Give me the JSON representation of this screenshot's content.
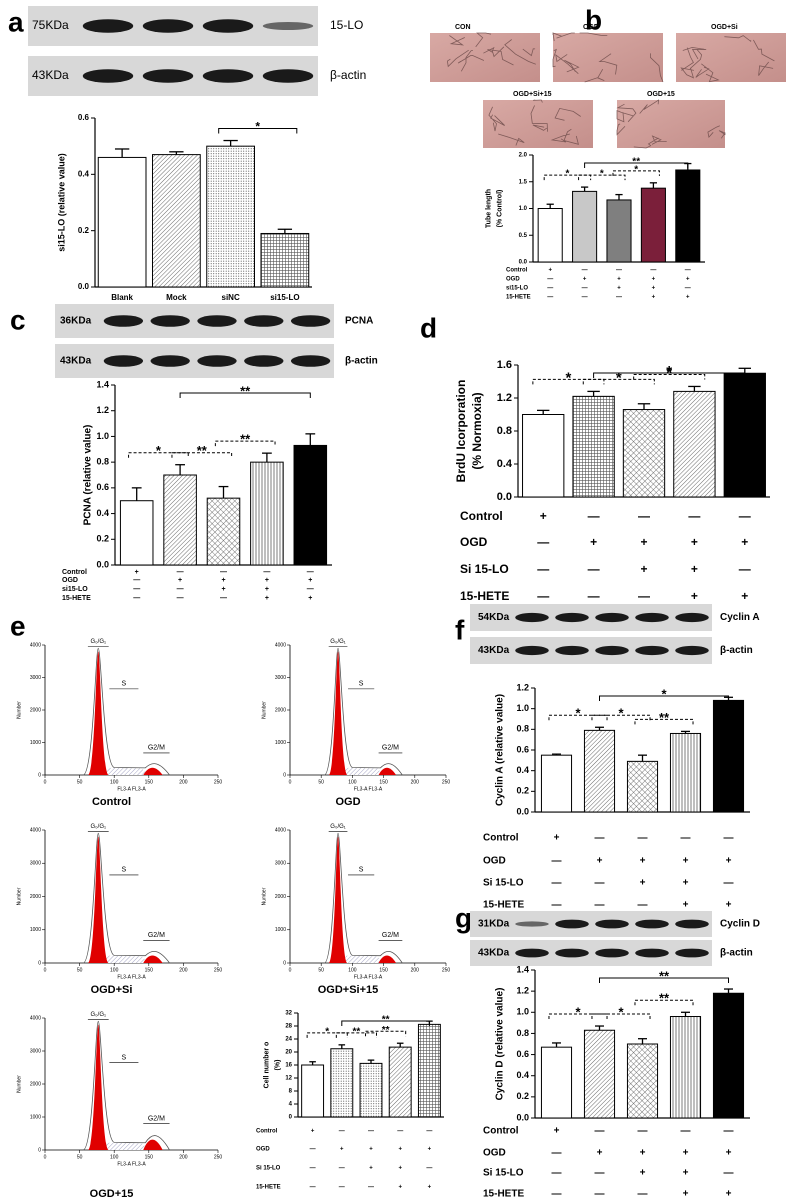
{
  "chart_data": [
    {
      "type": "bar",
      "panel": "a",
      "blots": [
        {
          "size": "75KDa",
          "protein": "15-LO"
        },
        {
          "size": "43KDa",
          "protein": "β-actin"
        }
      ],
      "ylabel": "si15-LO  (relative value)",
      "categories": [
        "Blank",
        "Mock",
        "siNC",
        "si15-LO"
      ],
      "values": [
        0.46,
        0.47,
        0.5,
        0.19
      ],
      "errors": [
        0.03,
        0.01,
        0.02,
        0.015
      ],
      "patterns": [
        "white",
        "hatch",
        "dots",
        "grid"
      ],
      "ylim": [
        0,
        0.6
      ],
      "yticks": [
        {
          "value": 0,
          "label": "0.0"
        },
        0.2,
        0.4,
        0.6
      ],
      "significance": [
        {
          "between": [
            2,
            3
          ],
          "label": "*"
        }
      ]
    },
    {
      "type": "bar",
      "panel": "b",
      "ylabel": [
        "Tube length",
        "(% Control)"
      ],
      "values": [
        1.0,
        1.32,
        1.16,
        1.38,
        1.72
      ],
      "errors": [
        0.08,
        0.08,
        0.1,
        0.1,
        0.12
      ],
      "colors": [
        "#ffffff",
        "#c8c8c8",
        "#7f7f7f",
        "#7b1f3a",
        "#000000"
      ],
      "ylim": [
        0,
        2
      ],
      "yticks": [
        {
          "value": 0,
          "label": "0.0"
        },
        0.5,
        {
          "value": 1,
          "label": "1.0"
        },
        1.5,
        {
          "value": 2,
          "label": "2.0"
        }
      ],
      "conditions": [
        {
          "name": "Control",
          "marks": [
            "+",
            "—",
            "—",
            "—",
            "—"
          ]
        },
        {
          "name": "OGD",
          "marks": [
            "—",
            "+",
            "+",
            "+",
            "+"
          ]
        },
        {
          "name": "si15-LO",
          "marks": [
            "—",
            "—",
            "+",
            "+",
            "—"
          ]
        },
        {
          "name": "15-HETE",
          "marks": [
            "—",
            "—",
            "—",
            "+",
            "+"
          ]
        }
      ],
      "significance": [
        {
          "between": [
            0,
            1
          ],
          "label": "*"
        },
        {
          "between": [
            1,
            2
          ],
          "label": "*"
        },
        {
          "between": [
            2,
            3
          ],
          "label": "*"
        },
        {
          "between": [
            1,
            4
          ],
          "label": "**"
        }
      ]
    },
    {
      "type": "bar",
      "panel": "c",
      "blots": [
        {
          "size": "36KDa",
          "protein": "PCNA"
        },
        {
          "size": "43KDa",
          "protein": "β-actin"
        }
      ],
      "ylabel": "PCNA (relative value)",
      "values": [
        0.5,
        0.7,
        0.52,
        0.8,
        0.93
      ],
      "errors": [
        0.1,
        0.08,
        0.09,
        0.07,
        0.09
      ],
      "patterns": [
        "white",
        "hatch",
        "crosshatch",
        "vertical",
        "black"
      ],
      "ylim": [
        0,
        1.4
      ],
      "yticks": [
        {
          "value": 0,
          "label": "0.0"
        },
        0.2,
        0.4,
        0.6,
        0.8,
        {
          "value": 1,
          "label": "1.0"
        },
        1.2,
        1.4
      ],
      "conditions": [
        {
          "name": "Control",
          "marks": [
            "+",
            "—",
            "—",
            "—",
            "—"
          ]
        },
        {
          "name": "OGD",
          "marks": [
            "—",
            "+",
            "+",
            "+",
            "+"
          ]
        },
        {
          "name": "si15-LO",
          "marks": [
            "—",
            "—",
            "+",
            "+",
            "—"
          ]
        },
        {
          "name": "15-HETE",
          "marks": [
            "—",
            "—",
            "—",
            "+",
            "+"
          ]
        }
      ],
      "significance": [
        {
          "between": [
            0,
            1
          ],
          "label": "*"
        },
        {
          "between": [
            1,
            2
          ],
          "label": "**"
        },
        {
          "between": [
            2,
            3
          ],
          "label": "**"
        },
        {
          "between": [
            1,
            4
          ],
          "label": "**"
        }
      ]
    },
    {
      "type": "bar",
      "panel": "d",
      "ylabel": [
        "BrdU Icorporation",
        "(% Normoxia)"
      ],
      "values": [
        1.0,
        1.22,
        1.06,
        1.28,
        1.5
      ],
      "errors": [
        0.05,
        0.06,
        0.07,
        0.06,
        0.06
      ],
      "patterns": [
        "white",
        "grid",
        "crosshatch",
        "hatch",
        "black"
      ],
      "ylim": [
        0,
        1.6
      ],
      "yticks": [
        {
          "value": 0,
          "label": "0.0"
        },
        0.4,
        0.8,
        1.2,
        1.6
      ],
      "conditions": [
        {
          "name": "Control",
          "marks": [
            "+",
            "—",
            "—",
            "—",
            "—"
          ]
        },
        {
          "name": "OGD",
          "marks": [
            "—",
            "+",
            "+",
            "+",
            "+"
          ]
        },
        {
          "name": "Si 15-LO",
          "marks": [
            "—",
            "—",
            "+",
            "+",
            "—"
          ]
        },
        {
          "name": "15-HETE",
          "marks": [
            "—",
            "—",
            "—",
            "+",
            "+"
          ]
        }
      ],
      "significance": [
        {
          "between": [
            0,
            1
          ],
          "label": "*"
        },
        {
          "between": [
            1,
            2
          ],
          "label": "*"
        },
        {
          "between": [
            2,
            3
          ],
          "label": "*"
        },
        {
          "between": [
            1,
            4
          ],
          "label": "*"
        }
      ]
    },
    {
      "type": "bar",
      "ylabel": [
        "Cell number o",
        "(%)"
      ],
      "values": [
        16,
        21,
        16.5,
        21.5,
        28.5
      ],
      "errors": [
        1,
        1.2,
        1,
        1.2,
        1
      ],
      "patterns": [
        "white",
        "dots",
        "dots",
        "hatch",
        "grid"
      ],
      "ylim": [
        0,
        32
      ],
      "yticks": [
        0,
        4,
        8,
        12,
        16,
        20,
        24,
        28,
        32
      ],
      "conditions": [
        {
          "name": "Control",
          "marks": [
            "+",
            "—",
            "—",
            "—",
            "—"
          ]
        },
        {
          "name": "OGD",
          "marks": [
            "—",
            "+",
            "+",
            "+",
            "+"
          ]
        },
        {
          "name": "Si 15-LO",
          "marks": [
            "—",
            "—",
            "+",
            "+",
            "—"
          ]
        },
        {
          "name": "15-HETE",
          "marks": [
            "—",
            "—",
            "—",
            "+",
            "+"
          ]
        }
      ],
      "significance": [
        {
          "between": [
            0,
            1
          ],
          "label": "*"
        },
        {
          "between": [
            1,
            2
          ],
          "label": "**"
        },
        {
          "between": [
            2,
            3
          ],
          "label": "**"
        },
        {
          "between": [
            1,
            4
          ],
          "label": "**"
        }
      ]
    },
    {
      "type": "bar",
      "panel": "f",
      "blots": [
        {
          "size": "54KDa",
          "protein": "Cyclin A"
        },
        {
          "size": "43KDa",
          "protein": "β-actin"
        }
      ],
      "ylabel": "Cyclin A (relative value)",
      "values": [
        0.55,
        0.79,
        0.49,
        0.76,
        1.08
      ],
      "errors": [
        0.01,
        0.03,
        0.06,
        0.02,
        0.03
      ],
      "patterns": [
        "white",
        "hatch",
        "crosshatch",
        "vertical",
        "black"
      ],
      "ylim": [
        0,
        1.2
      ],
      "yticks": [
        {
          "value": 0,
          "label": "0.0"
        },
        0.2,
        0.4,
        0.6,
        0.8,
        {
          "value": 1,
          "label": "1.0"
        },
        1.2
      ],
      "conditions": [
        {
          "name": "Control",
          "marks": [
            "+",
            "—",
            "—",
            "—",
            "—"
          ]
        },
        {
          "name": "OGD",
          "marks": [
            "—",
            "+",
            "+",
            "+",
            "+"
          ]
        },
        {
          "name": "Si 15-LO",
          "marks": [
            "—",
            "—",
            "+",
            "+",
            "—"
          ]
        },
        {
          "name": "15-HETE",
          "marks": [
            "—",
            "—",
            "—",
            "+",
            "+"
          ]
        }
      ],
      "significance": [
        {
          "between": [
            0,
            1
          ],
          "label": "*"
        },
        {
          "between": [
            1,
            2
          ],
          "label": "*"
        },
        {
          "between": [
            2,
            3
          ],
          "label": "**"
        },
        {
          "between": [
            1,
            4
          ],
          "label": "*"
        }
      ]
    },
    {
      "type": "bar",
      "panel": "g",
      "blots": [
        {
          "size": "31KDa",
          "protein": "Cyclin D"
        },
        {
          "size": "43KDa",
          "protein": "β-actin"
        }
      ],
      "ylabel": "Cyclin D (relative value)",
      "values": [
        0.67,
        0.83,
        0.7,
        0.96,
        1.18
      ],
      "errors": [
        0.04,
        0.04,
        0.05,
        0.04,
        0.04
      ],
      "patterns": [
        "white",
        "hatch",
        "crosshatch",
        "vertical",
        "black"
      ],
      "ylim": [
        0,
        1.4
      ],
      "yticks": [
        {
          "value": 0,
          "label": "0.0"
        },
        0.2,
        0.4,
        0.6,
        0.8,
        {
          "value": 1,
          "label": "1.0"
        },
        1.2,
        1.4
      ],
      "conditions": [
        {
          "name": "Control",
          "marks": [
            "+",
            "—",
            "—",
            "—",
            "—"
          ]
        },
        {
          "name": "OGD",
          "marks": [
            "—",
            "+",
            "+",
            "+",
            "+"
          ]
        },
        {
          "name": "Si 15-LO",
          "marks": [
            "—",
            "—",
            "+",
            "+",
            "—"
          ]
        },
        {
          "name": "15-HETE",
          "marks": [
            "—",
            "—",
            "—",
            "+",
            "+"
          ]
        }
      ],
      "significance": [
        {
          "between": [
            0,
            1
          ],
          "label": "*"
        },
        {
          "between": [
            1,
            2
          ],
          "label": "*"
        },
        {
          "between": [
            2,
            3
          ],
          "label": "**"
        },
        {
          "between": [
            1,
            4
          ],
          "label": "**"
        }
      ]
    }
  ],
  "micrographs": [
    "CON",
    "OGD",
    "OGD+Si",
    "OGD+Si+15",
    "OGD+15"
  ],
  "flow_cytometry": {
    "panel": "e",
    "y_label": "Number",
    "x_label": "FL3-A FL3-A",
    "ylim": [
      0,
      4000
    ],
    "yticks": [
      0,
      1000,
      2000,
      3000,
      4000
    ],
    "xlim": [
      0,
      250
    ],
    "xticks": [
      0,
      50,
      100,
      150,
      200,
      250
    ],
    "histograms": [
      {
        "title": "Control",
        "gates": [
          "G₀/G₁",
          "S",
          "G2/M"
        ]
      },
      {
        "title": "OGD",
        "gates": [
          "G₀/G₁",
          "S",
          "G2/M"
        ]
      },
      {
        "title": "OGD+Si",
        "gates": [
          "G₀/G₁",
          "S",
          "G2/M"
        ]
      },
      {
        "title": "OGD+Si+15",
        "gates": [
          "G₀/G₁",
          "S",
          "G2/M"
        ]
      },
      {
        "title": "OGD+15",
        "gates": [
          "G₀/G₁",
          "S",
          "G2/M"
        ]
      }
    ]
  }
}
